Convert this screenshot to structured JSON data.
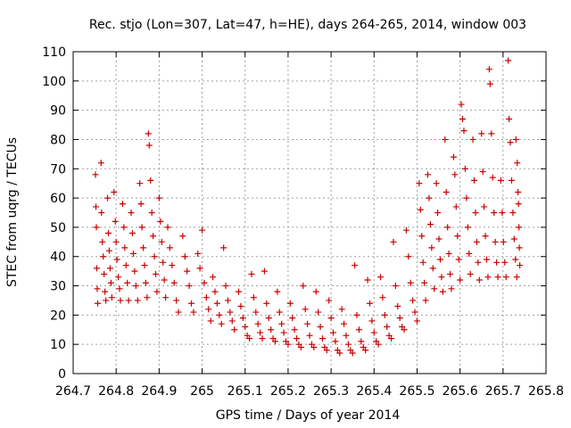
{
  "colors": {
    "marker": "#cc0000",
    "grid": "#a0a0a0",
    "axis": "#000000"
  },
  "chart_data": {
    "type": "scatter",
    "title": "Rec. stjo (Lon=307, Lat=47, h=HE), days 264-265, 2014, window 003",
    "xlabel": "GPS time / Days of year 2014",
    "ylabel": "STEC from uqrg / TECUs",
    "xlim": [
      264.7,
      265.8
    ],
    "ylim": [
      0,
      110
    ],
    "xticks": [
      "264.7",
      "264.8",
      "264.9",
      "265",
      "265.1",
      "265.2",
      "265.3",
      "265.4",
      "265.5",
      "265.6",
      "265.7",
      "265.8"
    ],
    "yticks": [
      "0",
      "10",
      "20",
      "30",
      "40",
      "50",
      "60",
      "70",
      "80",
      "90",
      "100",
      "110"
    ],
    "grid": true,
    "marker": "+",
    "points": [
      [
        264.752,
        68
      ],
      [
        264.753,
        57
      ],
      [
        264.754,
        50
      ],
      [
        264.755,
        36
      ],
      [
        264.756,
        29
      ],
      [
        264.757,
        24
      ],
      [
        264.765,
        72
      ],
      [
        264.766,
        55
      ],
      [
        264.768,
        45
      ],
      [
        264.77,
        40
      ],
      [
        264.772,
        34
      ],
      [
        264.774,
        28
      ],
      [
        264.776,
        25
      ],
      [
        264.78,
        60
      ],
      [
        264.782,
        48
      ],
      [
        264.784,
        42
      ],
      [
        264.786,
        36
      ],
      [
        264.788,
        31
      ],
      [
        264.79,
        26
      ],
      [
        264.795,
        62
      ],
      [
        264.798,
        52
      ],
      [
        264.8,
        45
      ],
      [
        264.802,
        39
      ],
      [
        264.805,
        33
      ],
      [
        264.808,
        29
      ],
      [
        264.81,
        25
      ],
      [
        264.815,
        58
      ],
      [
        264.818,
        50
      ],
      [
        264.82,
        43
      ],
      [
        264.823,
        37
      ],
      [
        264.826,
        31
      ],
      [
        264.829,
        25
      ],
      [
        264.835,
        55
      ],
      [
        264.838,
        48
      ],
      [
        264.84,
        41
      ],
      [
        264.843,
        35
      ],
      [
        264.846,
        30
      ],
      [
        264.85,
        25
      ],
      [
        264.855,
        65
      ],
      [
        264.858,
        58
      ],
      [
        264.86,
        50
      ],
      [
        264.863,
        43
      ],
      [
        264.866,
        37
      ],
      [
        264.869,
        31
      ],
      [
        264.872,
        26
      ],
      [
        264.875,
        82
      ],
      [
        264.877,
        78
      ],
      [
        264.88,
        66
      ],
      [
        264.883,
        55
      ],
      [
        264.886,
        47
      ],
      [
        264.889,
        40
      ],
      [
        264.892,
        34
      ],
      [
        264.895,
        28
      ],
      [
        264.9,
        60
      ],
      [
        264.903,
        52
      ],
      [
        264.906,
        45
      ],
      [
        264.909,
        38
      ],
      [
        264.912,
        32
      ],
      [
        264.915,
        26
      ],
      [
        264.92,
        50
      ],
      [
        264.925,
        43
      ],
      [
        264.93,
        37
      ],
      [
        264.935,
        31
      ],
      [
        264.94,
        25
      ],
      [
        264.945,
        21
      ],
      [
        264.955,
        47
      ],
      [
        264.96,
        40
      ],
      [
        264.965,
        35
      ],
      [
        264.97,
        30
      ],
      [
        264.975,
        24
      ],
      [
        264.98,
        21
      ],
      [
        264.99,
        41
      ],
      [
        264.995,
        36
      ],
      [
        265.0,
        49
      ],
      [
        265.005,
        31
      ],
      [
        265.01,
        26
      ],
      [
        265.015,
        22
      ],
      [
        265.02,
        18
      ],
      [
        265.025,
        33
      ],
      [
        265.03,
        28
      ],
      [
        265.035,
        24
      ],
      [
        265.04,
        20
      ],
      [
        265.045,
        17
      ],
      [
        265.05,
        43
      ],
      [
        265.055,
        30
      ],
      [
        265.06,
        25
      ],
      [
        265.065,
        21
      ],
      [
        265.07,
        18
      ],
      [
        265.075,
        15
      ],
      [
        265.085,
        28
      ],
      [
        265.09,
        23
      ],
      [
        265.095,
        19
      ],
      [
        265.1,
        16
      ],
      [
        265.105,
        13
      ],
      [
        265.11,
        12
      ],
      [
        265.115,
        34
      ],
      [
        265.12,
        26
      ],
      [
        265.125,
        21
      ],
      [
        265.13,
        17
      ],
      [
        265.135,
        14
      ],
      [
        265.14,
        12
      ],
      [
        265.145,
        35
      ],
      [
        265.15,
        24
      ],
      [
        265.155,
        19
      ],
      [
        265.16,
        15
      ],
      [
        265.165,
        12
      ],
      [
        265.17,
        11
      ],
      [
        265.175,
        28
      ],
      [
        265.18,
        21
      ],
      [
        265.185,
        17
      ],
      [
        265.19,
        14
      ],
      [
        265.195,
        11
      ],
      [
        265.2,
        10
      ],
      [
        265.205,
        24
      ],
      [
        265.21,
        19
      ],
      [
        265.215,
        15
      ],
      [
        265.22,
        12
      ],
      [
        265.225,
        10
      ],
      [
        265.23,
        9
      ],
      [
        265.235,
        30
      ],
      [
        265.24,
        22
      ],
      [
        265.245,
        17
      ],
      [
        265.25,
        13
      ],
      [
        265.255,
        10
      ],
      [
        265.26,
        9
      ],
      [
        265.265,
        28
      ],
      [
        265.27,
        21
      ],
      [
        265.275,
        16
      ],
      [
        265.28,
        12
      ],
      [
        265.285,
        9
      ],
      [
        265.29,
        8
      ],
      [
        265.295,
        25
      ],
      [
        265.3,
        19
      ],
      [
        265.305,
        14
      ],
      [
        265.31,
        11
      ],
      [
        265.315,
        8
      ],
      [
        265.32,
        7
      ],
      [
        265.325,
        22
      ],
      [
        265.33,
        17
      ],
      [
        265.335,
        13
      ],
      [
        265.34,
        10
      ],
      [
        265.345,
        8
      ],
      [
        265.35,
        7
      ],
      [
        265.355,
        37
      ],
      [
        265.36,
        20
      ],
      [
        265.365,
        15
      ],
      [
        265.37,
        11
      ],
      [
        265.375,
        9
      ],
      [
        265.38,
        8
      ],
      [
        265.385,
        32
      ],
      [
        265.39,
        24
      ],
      [
        265.395,
        18
      ],
      [
        265.4,
        14
      ],
      [
        265.405,
        11
      ],
      [
        265.41,
        10
      ],
      [
        265.415,
        33
      ],
      [
        265.42,
        26
      ],
      [
        265.425,
        20
      ],
      [
        265.43,
        16
      ],
      [
        265.435,
        13
      ],
      [
        265.44,
        12
      ],
      [
        265.445,
        45
      ],
      [
        265.45,
        30
      ],
      [
        265.455,
        23
      ],
      [
        265.46,
        19
      ],
      [
        265.465,
        16
      ],
      [
        265.47,
        15
      ],
      [
        265.475,
        49
      ],
      [
        265.48,
        40
      ],
      [
        265.485,
        31
      ],
      [
        265.49,
        25
      ],
      [
        265.495,
        21
      ],
      [
        265.5,
        18
      ],
      [
        265.505,
        65
      ],
      [
        265.508,
        56
      ],
      [
        265.511,
        47
      ],
      [
        265.514,
        38
      ],
      [
        265.517,
        31
      ],
      [
        265.52,
        25
      ],
      [
        265.525,
        68
      ],
      [
        265.528,
        60
      ],
      [
        265.531,
        51
      ],
      [
        265.534,
        43
      ],
      [
        265.537,
        36
      ],
      [
        265.54,
        29
      ],
      [
        265.545,
        65
      ],
      [
        265.548,
        55
      ],
      [
        265.551,
        46
      ],
      [
        265.554,
        39
      ],
      [
        265.557,
        33
      ],
      [
        265.56,
        28
      ],
      [
        265.565,
        80
      ],
      [
        265.568,
        62
      ],
      [
        265.571,
        50
      ],
      [
        265.574,
        41
      ],
      [
        265.577,
        34
      ],
      [
        265.58,
        29
      ],
      [
        265.585,
        74
      ],
      [
        265.588,
        68
      ],
      [
        265.591,
        57
      ],
      [
        265.594,
        47
      ],
      [
        265.597,
        39
      ],
      [
        265.6,
        32
      ],
      [
        265.603,
        92
      ],
      [
        265.606,
        87
      ],
      [
        265.609,
        83
      ],
      [
        265.612,
        70
      ],
      [
        265.615,
        60
      ],
      [
        265.618,
        50
      ],
      [
        265.621,
        41
      ],
      [
        265.624,
        34
      ],
      [
        265.63,
        80
      ],
      [
        265.633,
        66
      ],
      [
        265.636,
        55
      ],
      [
        265.639,
        45
      ],
      [
        265.642,
        38
      ],
      [
        265.645,
        32
      ],
      [
        265.65,
        82
      ],
      [
        265.653,
        69
      ],
      [
        265.656,
        57
      ],
      [
        265.659,
        47
      ],
      [
        265.662,
        39
      ],
      [
        265.665,
        33
      ],
      [
        265.668,
        104
      ],
      [
        265.67,
        99
      ],
      [
        265.673,
        82
      ],
      [
        265.676,
        67
      ],
      [
        265.679,
        55
      ],
      [
        265.682,
        45
      ],
      [
        265.685,
        38
      ],
      [
        265.688,
        33
      ],
      [
        265.695,
        66
      ],
      [
        265.698,
        55
      ],
      [
        265.701,
        45
      ],
      [
        265.704,
        38
      ],
      [
        265.707,
        33
      ],
      [
        265.712,
        107
      ],
      [
        265.714,
        87
      ],
      [
        265.717,
        79
      ],
      [
        265.72,
        66
      ],
      [
        265.723,
        55
      ],
      [
        265.726,
        46
      ],
      [
        265.729,
        39
      ],
      [
        265.732,
        33
      ],
      [
        265.73,
        80
      ],
      [
        265.733,
        72
      ],
      [
        265.735,
        62
      ],
      [
        265.736,
        58
      ],
      [
        265.737,
        50
      ],
      [
        265.738,
        43
      ],
      [
        265.739,
        37
      ]
    ]
  }
}
